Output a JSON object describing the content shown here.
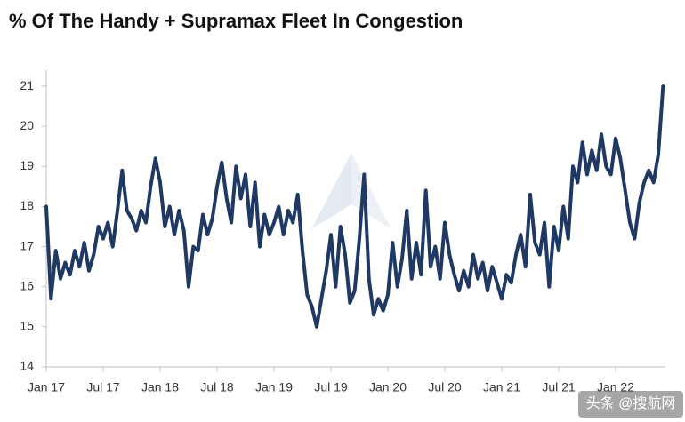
{
  "chart_data": {
    "type": "line",
    "title": "% Of The Handy + Supramax Fleet In Congestion",
    "watermark": "头条 @搜航网",
    "categories": [
      "Jan 17",
      null,
      null,
      null,
      null,
      null,
      null,
      null,
      null,
      null,
      null,
      null,
      "Jul 17",
      null,
      null,
      null,
      null,
      null,
      null,
      null,
      null,
      null,
      null,
      null,
      "Jan 18",
      null,
      null,
      null,
      null,
      null,
      null,
      null,
      null,
      null,
      null,
      null,
      "Jul 18",
      null,
      null,
      null,
      null,
      null,
      null,
      null,
      null,
      null,
      null,
      null,
      "Jan 19",
      null,
      null,
      null,
      null,
      null,
      null,
      null,
      null,
      null,
      null,
      null,
      "Jul 19",
      null,
      null,
      null,
      null,
      null,
      null,
      null,
      null,
      null,
      null,
      null,
      "Jan 20",
      null,
      null,
      null,
      null,
      null,
      null,
      null,
      null,
      null,
      null,
      null,
      "Jul 20",
      null,
      null,
      null,
      null,
      null,
      null,
      null,
      null,
      null,
      null,
      null,
      "Jan 21",
      null,
      null,
      null,
      null,
      null,
      null,
      null,
      null,
      null,
      null,
      null,
      "Jul 21",
      null,
      null,
      null,
      null,
      null,
      null,
      null,
      null,
      null,
      null,
      null,
      "Jan 22",
      null,
      null,
      null,
      null,
      null,
      null,
      null,
      null,
      null,
      null
    ],
    "series": [
      {
        "color": "#1f3864",
        "values": [
          18.0,
          15.7,
          16.9,
          16.2,
          16.6,
          16.3,
          16.9,
          16.5,
          17.1,
          16.4,
          16.8,
          17.5,
          17.2,
          17.6,
          17.0,
          17.9,
          18.9,
          17.9,
          17.7,
          17.4,
          17.9,
          17.6,
          18.5,
          19.2,
          18.6,
          17.5,
          18.0,
          17.3,
          17.9,
          17.4,
          16.0,
          17.0,
          16.9,
          17.8,
          17.3,
          17.7,
          18.5,
          19.1,
          18.2,
          17.6,
          19.0,
          18.2,
          18.8,
          17.5,
          18.6,
          17.0,
          17.8,
          17.3,
          17.6,
          18.0,
          17.3,
          17.9,
          17.6,
          18.3,
          16.9,
          15.8,
          15.5,
          15.0,
          15.7,
          16.4,
          17.3,
          16.0,
          17.5,
          16.8,
          15.6,
          15.9,
          17.2,
          18.8,
          16.2,
          15.3,
          15.7,
          15.4,
          15.8,
          17.1,
          16.0,
          16.7,
          17.9,
          16.2,
          17.1,
          16.3,
          18.4,
          16.5,
          17.0,
          16.2,
          17.6,
          16.8,
          16.3,
          15.9,
          16.4,
          16.0,
          16.8,
          16.2,
          16.6,
          15.9,
          16.5,
          16.1,
          15.7,
          16.3,
          16.1,
          16.8,
          17.3,
          16.5,
          18.3,
          17.1,
          16.8,
          17.6,
          16.0,
          17.5,
          16.9,
          18.0,
          17.2,
          19.0,
          18.6,
          19.6,
          18.8,
          19.4,
          18.9,
          19.8,
          19.0,
          18.8,
          19.7,
          19.2,
          18.4,
          17.6,
          17.2,
          18.1,
          18.6,
          18.9,
          18.6,
          19.3,
          21.0
        ]
      }
    ],
    "ylim": [
      14,
      21.4
    ],
    "yticks": [
      14,
      15,
      16,
      17,
      18,
      19,
      20,
      21
    ]
  }
}
